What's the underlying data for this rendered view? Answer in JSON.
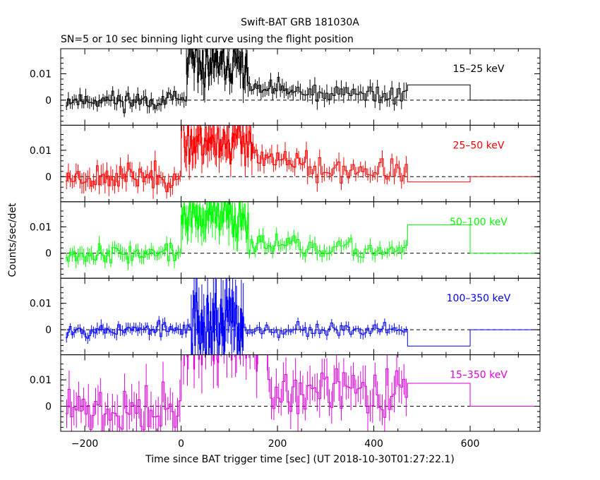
{
  "chart_data": {
    "type": "line",
    "title": "Swift-BAT GRB 181030A",
    "subtitle": "SN=5 or 10 sec binning light curve using the flight position",
    "xlabel": "Time since BAT trigger time [sec] (UT 2018-10-30T01:27:22.1)",
    "ylabel": "Counts/sec/det",
    "xlim": [
      -250,
      745
    ],
    "x_ticks": [
      -200,
      0,
      200,
      400,
      600
    ],
    "x_tick_labels": [
      "−200",
      "0",
      "200",
      "400",
      "600"
    ],
    "y_ticks": [
      0,
      0.01
    ],
    "y_tick_labels": [
      "0",
      "0.01"
    ],
    "ylim": [
      -0.0095,
      0.0195
    ],
    "grid": false,
    "panels": [
      {
        "name": "15–25 keV",
        "color": "#000000",
        "seed": 11,
        "segments": [
          {
            "from": -240,
            "to": 10,
            "step": 4,
            "base": 0.0,
            "noise": 0.0025
          },
          {
            "from": 10,
            "to": 140,
            "step": 2,
            "base": 0.013,
            "noise": 0.006
          },
          {
            "from": 140,
            "to": 230,
            "step": 4,
            "base": 0.004,
            "noise": 0.0025
          },
          {
            "from": 230,
            "to": 470,
            "step": 5,
            "base": 0.002,
            "noise": 0.003
          }
        ],
        "tail": [
          [
            470,
            600,
            0.0058
          ],
          [
            600,
            745,
            0.0
          ]
        ]
      },
      {
        "name": "25–50 keV",
        "color": "#ff0000",
        "seed": 23,
        "segments": [
          {
            "from": -240,
            "to": 0,
            "step": 4,
            "base": 0.0,
            "noise": 0.0035
          },
          {
            "from": 0,
            "to": 150,
            "step": 2,
            "base": 0.0135,
            "noise": 0.006
          },
          {
            "from": 150,
            "to": 260,
            "step": 4,
            "base": 0.006,
            "noise": 0.003
          },
          {
            "from": 260,
            "to": 470,
            "step": 5,
            "base": 0.002,
            "noise": 0.003
          }
        ],
        "tail": [
          [
            470,
            600,
            -0.002
          ],
          [
            600,
            745,
            0.0
          ]
        ]
      },
      {
        "name": "50–100 keV",
        "color": "#00ff00",
        "seed": 37,
        "segments": [
          {
            "from": -240,
            "to": 0,
            "step": 4,
            "base": 0.0,
            "noise": 0.0025
          },
          {
            "from": 0,
            "to": 140,
            "step": 2,
            "base": 0.0135,
            "noise": 0.006
          },
          {
            "from": 140,
            "to": 240,
            "step": 4,
            "base": 0.004,
            "noise": 0.0025
          },
          {
            "from": 240,
            "to": 470,
            "step": 5,
            "base": 0.001,
            "noise": 0.0025
          }
        ],
        "tail": [
          [
            470,
            600,
            0.0108
          ],
          [
            600,
            745,
            0.0
          ]
        ]
      },
      {
        "name": "100–350 keV",
        "color": "#0000ff",
        "seed": 53,
        "segments": [
          {
            "from": -240,
            "to": 20,
            "step": 4,
            "base": 0.0,
            "noise": 0.002
          },
          {
            "from": 20,
            "to": 130,
            "step": 2,
            "base": 0.002,
            "noise": 0.011
          },
          {
            "from": 130,
            "to": 470,
            "step": 5,
            "base": 0.0,
            "noise": 0.0018
          }
        ],
        "tail": [
          [
            470,
            600,
            -0.0062
          ],
          [
            600,
            745,
            0.0
          ]
        ]
      },
      {
        "name": "15–350 keV",
        "color": "#dd00dd",
        "seed": 71,
        "segments": [
          {
            "from": -240,
            "to": 0,
            "step": 5,
            "base": -0.002,
            "noise": 0.007
          },
          {
            "from": 0,
            "to": 180,
            "step": 2,
            "base": 0.03,
            "noise": 0.01
          },
          {
            "from": 180,
            "to": 470,
            "step": 5,
            "base": 0.005,
            "noise": 0.007
          }
        ],
        "tail": [
          [
            470,
            600,
            0.0087
          ],
          [
            600,
            745,
            0.0
          ]
        ]
      }
    ]
  }
}
